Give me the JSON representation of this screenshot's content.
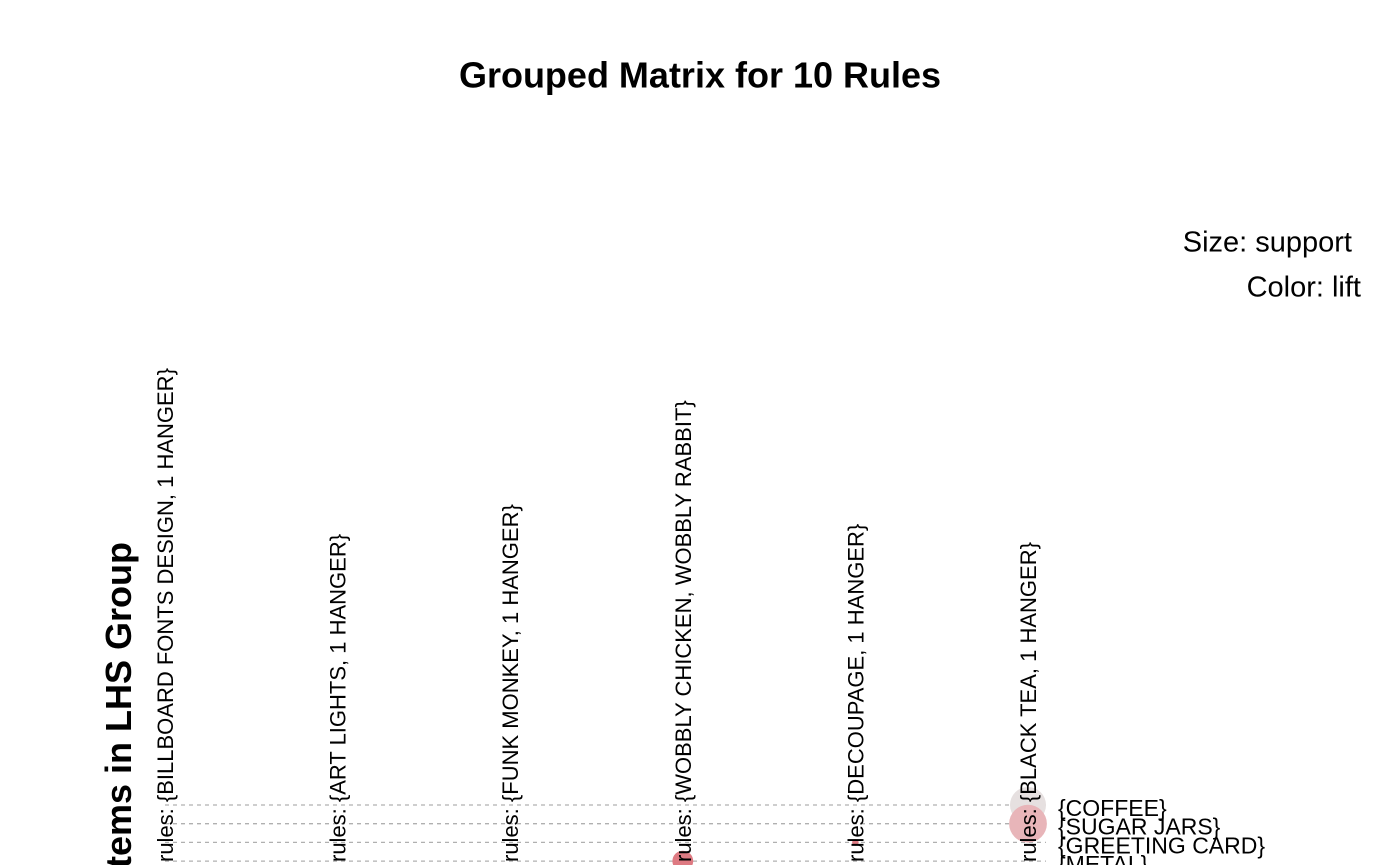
{
  "chart_data": {
    "type": "grouped-matrix",
    "title": "Grouped Matrix for 10 Rules",
    "size_legend": "Size: support",
    "color_legend": "Color: lift",
    "y_label": "Items in LHS Group",
    "columns": [
      "rules: {BILLBOARD FONTS DESIGN, 1 HANGER}",
      "rules: {ART LIGHTS, 1 HANGER}",
      "rules: {FUNK MONKEY, 1 HANGER}",
      "rules: {WOBBLY CHICKEN, WOBBLY RABBIT}",
      "rules: {DECOUPAGE, 1 HANGER}",
      "rules: {BLACK TEA, 1 HANGER}"
    ],
    "rows": [
      "{COFFEE}",
      "{SUGAR JARS}",
      "{GREETING CARD}",
      "{METAL}"
    ],
    "points": [
      {
        "column": 5,
        "row": 0,
        "support": 0.03,
        "color": "#e6e0e0"
      },
      {
        "column": 5,
        "row": 1,
        "support": 0.033,
        "color": "#e8b5b9"
      },
      {
        "column": 4,
        "row": 2,
        "support": 0.001,
        "color": "#de7a82"
      },
      {
        "column": 3,
        "row": 3,
        "support": 0.01,
        "color": "#de7a82"
      }
    ]
  }
}
